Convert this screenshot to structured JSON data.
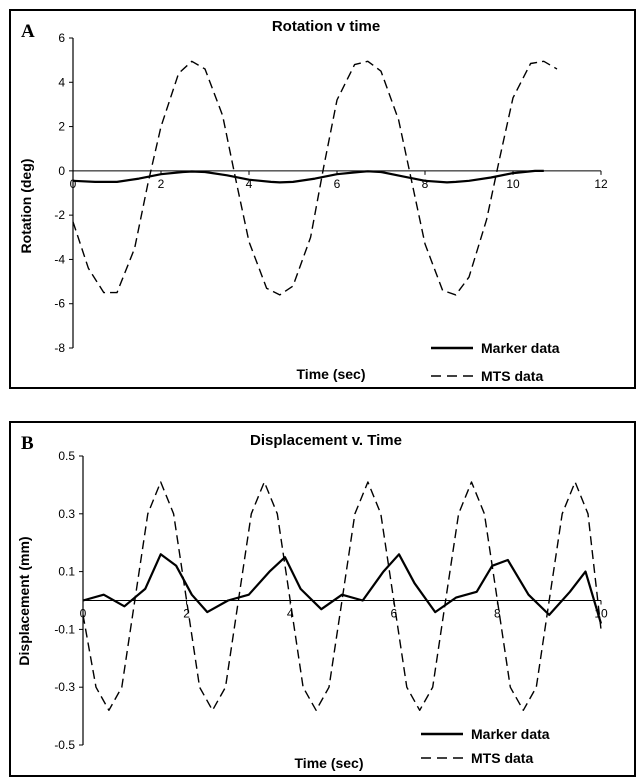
{
  "chart_data": [
    {
      "type": "line",
      "panel_label": "A",
      "title": "Rotation v time",
      "xlabel": "Time (sec)",
      "ylabel": "Rotation (deg)",
      "xlim": [
        0,
        12
      ],
      "ylim": [
        -8,
        6
      ],
      "xticks": [
        "0",
        "2",
        "4",
        "6",
        "8",
        "10",
        "12"
      ],
      "yticks": [
        "-8",
        "-6",
        "-4",
        "-2",
        "0",
        "2",
        "4",
        "6"
      ],
      "grid": false,
      "legend_position": "bottom-right",
      "series": [
        {
          "name": "Marker data",
          "style": "solid",
          "x": [
            0,
            0.5,
            1.0,
            1.5,
            2.0,
            2.5,
            2.7,
            3.0,
            3.5,
            4.0,
            4.5,
            4.7,
            5.0,
            5.5,
            6.0,
            6.5,
            6.7,
            7.0,
            7.5,
            8.0,
            8.5,
            8.7,
            9.0,
            9.5,
            10.0,
            10.5,
            10.7
          ],
          "y": [
            -0.45,
            -0.5,
            -0.5,
            -0.35,
            -0.15,
            -0.05,
            -0.03,
            -0.05,
            -0.2,
            -0.4,
            -0.5,
            -0.52,
            -0.5,
            -0.35,
            -0.15,
            -0.05,
            -0.02,
            -0.05,
            -0.25,
            -0.45,
            -0.52,
            -0.5,
            -0.45,
            -0.3,
            -0.1,
            0.0,
            0.0
          ]
        },
        {
          "name": "MTS data",
          "style": "dashed",
          "x": [
            0,
            0.35,
            0.7,
            1.0,
            1.4,
            1.7,
            2.0,
            2.4,
            2.7,
            3.0,
            3.4,
            3.7,
            4.0,
            4.4,
            4.7,
            5.0,
            5.4,
            5.7,
            6.0,
            6.4,
            6.7,
            7.0,
            7.4,
            7.7,
            8.0,
            8.4,
            8.7,
            9.0,
            9.4,
            9.7,
            10.0,
            10.4,
            10.7,
            11.0
          ],
          "y": [
            -2.3,
            -4.4,
            -5.5,
            -5.5,
            -3.5,
            -0.6,
            2.0,
            4.4,
            4.95,
            4.6,
            2.5,
            -0.4,
            -3.2,
            -5.3,
            -5.6,
            -5.2,
            -3.0,
            0.2,
            3.2,
            4.8,
            4.95,
            4.5,
            2.3,
            -0.5,
            -3.3,
            -5.4,
            -5.6,
            -4.8,
            -2.2,
            0.6,
            3.3,
            4.85,
            4.95,
            4.6
          ]
        }
      ]
    },
    {
      "type": "line",
      "panel_label": "B",
      "title": "Displacement v. Time",
      "xlabel": "Time (sec)",
      "ylabel": "Displacement (mm)",
      "xlim": [
        0,
        10
      ],
      "ylim": [
        -0.5,
        0.5
      ],
      "xticks": [
        "0",
        "2",
        "4",
        "6",
        "8",
        "10"
      ],
      "yticks": [
        "-0.5",
        "-0.3",
        "-0.1",
        "0.1",
        "0.3",
        "0.5"
      ],
      "grid": false,
      "legend_position": "bottom-right",
      "series": [
        {
          "name": "Marker data",
          "style": "solid",
          "x": [
            0,
            0.4,
            0.8,
            1.2,
            1.5,
            1.8,
            2.1,
            2.4,
            2.8,
            3.2,
            3.6,
            3.9,
            4.2,
            4.6,
            5.0,
            5.4,
            5.8,
            6.1,
            6.4,
            6.8,
            7.2,
            7.6,
            7.9,
            8.2,
            8.6,
            9.0,
            9.4,
            9.7,
            10.0
          ],
          "y": [
            0.0,
            0.02,
            -0.02,
            0.04,
            0.16,
            0.12,
            0.02,
            -0.04,
            0.0,
            0.02,
            0.1,
            0.15,
            0.04,
            -0.03,
            0.02,
            0.0,
            0.1,
            0.16,
            0.06,
            -0.04,
            0.01,
            0.03,
            0.12,
            0.14,
            0.02,
            -0.05,
            0.03,
            0.1,
            -0.08
          ]
        },
        {
          "name": "MTS data",
          "style": "dashed",
          "x": [
            0,
            0.25,
            0.5,
            0.75,
            1.0,
            1.25,
            1.5,
            1.75,
            2.0,
            2.25,
            2.5,
            2.75,
            3.0,
            3.25,
            3.5,
            3.75,
            4.0,
            4.25,
            4.5,
            4.75,
            5.0,
            5.25,
            5.5,
            5.75,
            6.0,
            6.25,
            6.5,
            6.75,
            7.0,
            7.25,
            7.5,
            7.75,
            8.0,
            8.25,
            8.5,
            8.75,
            9.0,
            9.25,
            9.5,
            9.75,
            10.0
          ],
          "y": [
            -0.05,
            -0.3,
            -0.38,
            -0.3,
            0.0,
            0.3,
            0.41,
            0.3,
            0.0,
            -0.3,
            -0.38,
            -0.3,
            0.0,
            0.3,
            0.41,
            0.3,
            0.0,
            -0.3,
            -0.38,
            -0.3,
            0.0,
            0.3,
            0.41,
            0.3,
            0.0,
            -0.3,
            -0.38,
            -0.3,
            0.0,
            0.3,
            0.41,
            0.3,
            0.0,
            -0.3,
            -0.38,
            -0.3,
            0.0,
            0.3,
            0.41,
            0.3,
            -0.1
          ]
        }
      ]
    }
  ]
}
